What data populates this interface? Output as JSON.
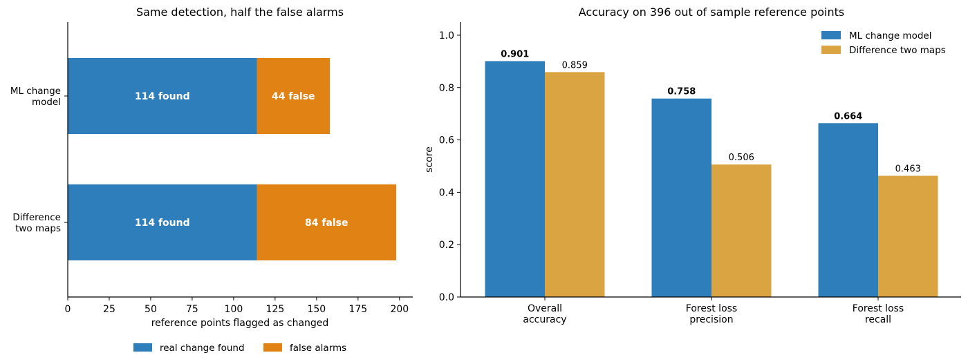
{
  "colors": {
    "found": "#2e7ebb",
    "false": "#e08214",
    "ml": "#2e7ebb",
    "diff": "#d9a441"
  },
  "chart_data": [
    {
      "type": "bar",
      "orientation": "horizontal",
      "stacked": true,
      "title": "Same detection, half the false alarms",
      "xlabel": "reference points flagged as changed",
      "ylabel": "",
      "xlim": [
        0,
        208
      ],
      "xticks": [
        0,
        25,
        50,
        75,
        100,
        125,
        150,
        175,
        200
      ],
      "categories": [
        "ML change\nmodel",
        "Difference\ntwo maps"
      ],
      "series": [
        {
          "name": "real change found",
          "values": [
            114,
            114
          ],
          "labels": [
            "114 found",
            "114 found"
          ],
          "color_key": "found"
        },
        {
          "name": "false alarms",
          "values": [
            44,
            84
          ],
          "labels": [
            "44 false",
            "84 false"
          ],
          "color_key": "false"
        }
      ],
      "legend": "bottom-center",
      "grid": false
    },
    {
      "type": "bar",
      "orientation": "vertical",
      "stacked": false,
      "title": "Accuracy on 396 out of sample reference points",
      "xlabel": "",
      "ylabel": "score",
      "ylim": [
        0,
        1.05
      ],
      "yticks": [
        0.0,
        0.2,
        0.4,
        0.6,
        0.8,
        1.0
      ],
      "categories": [
        "Overall\naccuracy",
        "Forest loss\nprecision",
        "Forest loss\nrecall"
      ],
      "series": [
        {
          "name": "ML change model",
          "values": [
            0.901,
            0.758,
            0.664
          ],
          "labels": [
            "0.901",
            "0.758",
            "0.664"
          ],
          "color_key": "ml",
          "bold_labels": true
        },
        {
          "name": "Difference two maps",
          "values": [
            0.859,
            0.506,
            0.463
          ],
          "labels": [
            "0.859",
            "0.506",
            "0.463"
          ],
          "color_key": "diff",
          "bold_labels": false
        }
      ],
      "legend": "top-right",
      "grid": false
    }
  ]
}
